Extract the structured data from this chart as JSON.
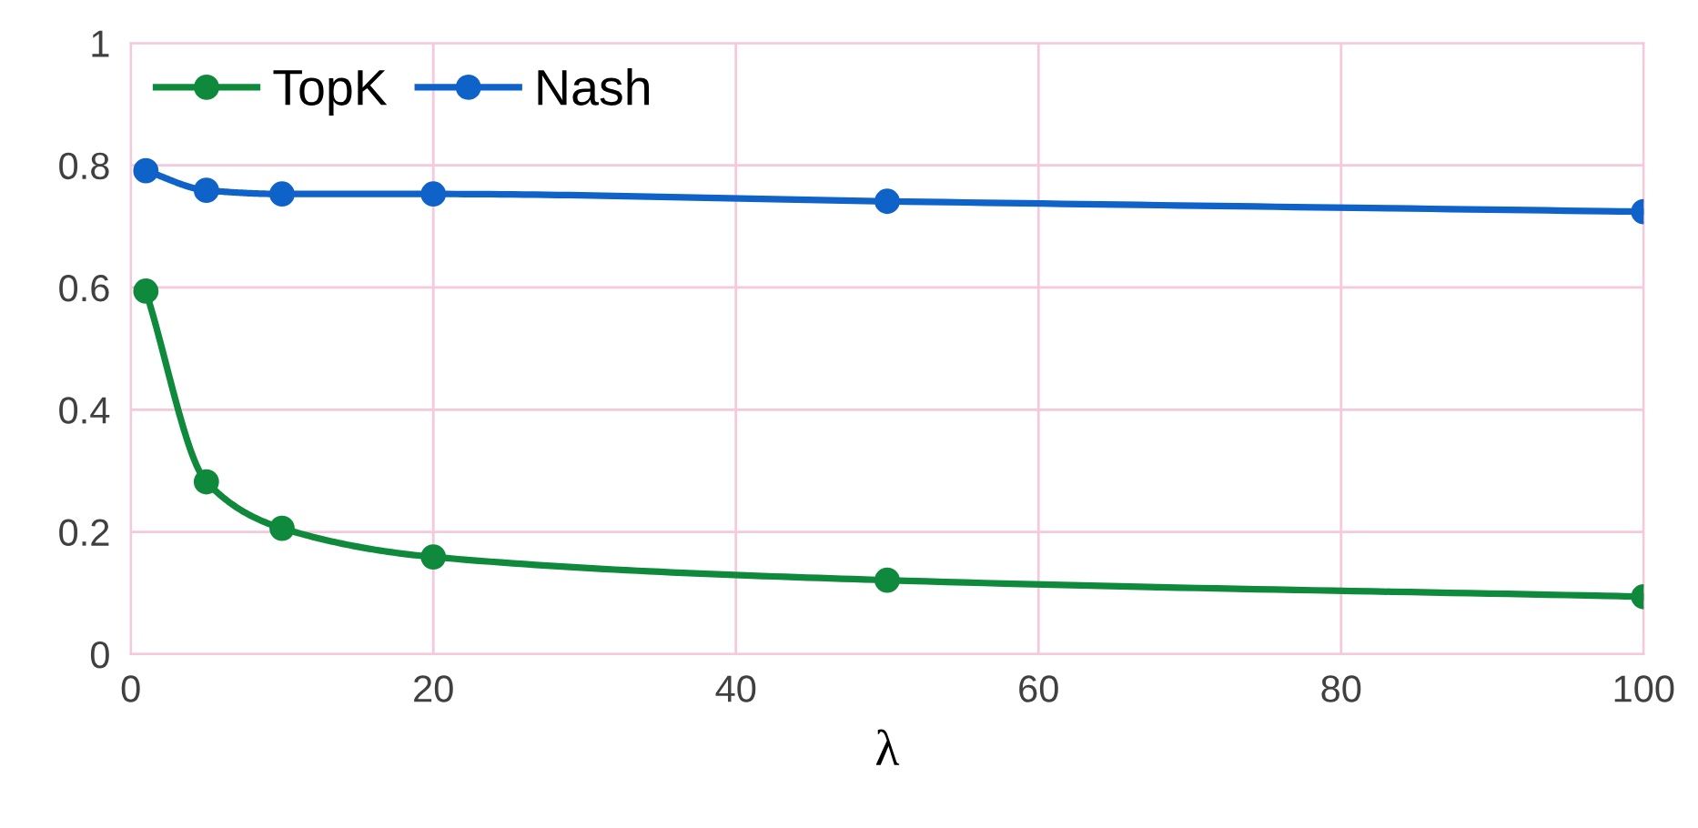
{
  "chart_data": {
    "type": "line",
    "xlabel": "λ",
    "x": [
      1,
      5,
      10,
      20,
      50,
      100
    ],
    "series": [
      {
        "name": "TopK",
        "color": "#0f8a3c",
        "values": [
          0.594,
          0.282,
          0.206,
          0.159,
          0.121,
          0.094
        ]
      },
      {
        "name": "Nash",
        "color": "#0f62c8",
        "values": [
          0.791,
          0.759,
          0.753,
          0.753,
          0.741,
          0.724
        ]
      }
    ],
    "xlim": [
      0,
      100
    ],
    "xticks": [
      0,
      20,
      40,
      60,
      80,
      100
    ],
    "ylim": [
      0,
      1
    ],
    "yticks": [
      0,
      0.2,
      0.4,
      0.6,
      0.8,
      1
    ],
    "grid": true,
    "legend": "top left",
    "marker": "circle",
    "line_style": "solid"
  }
}
